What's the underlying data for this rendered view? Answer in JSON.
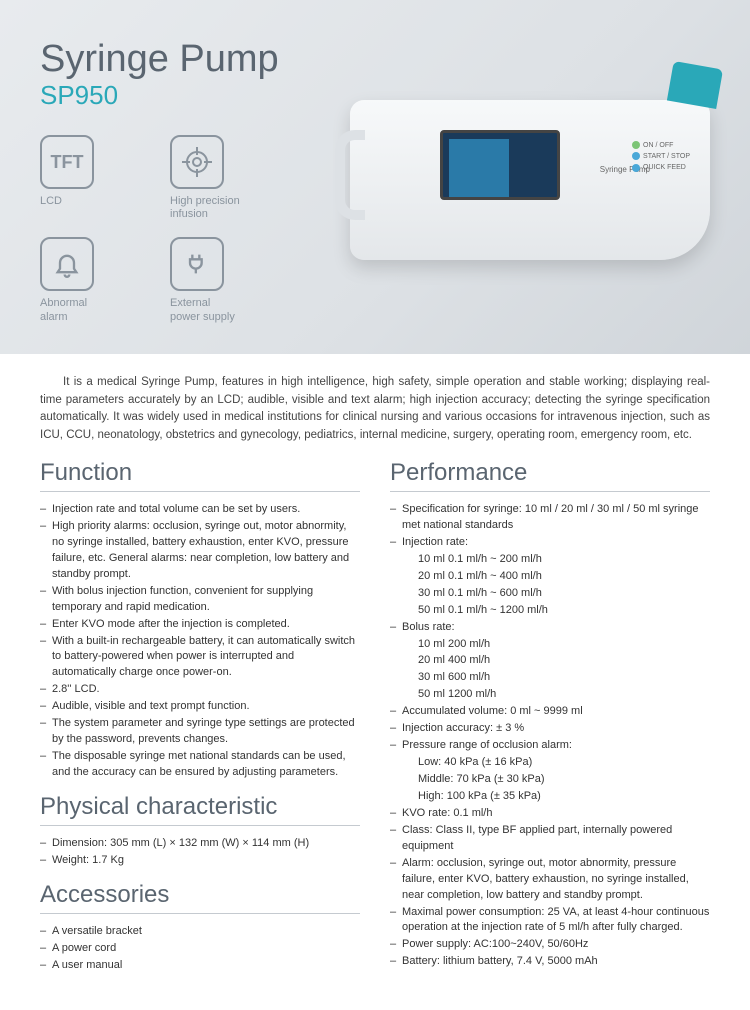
{
  "hero": {
    "title": "Syringe Pump",
    "model": "SP950",
    "features": [
      {
        "icon": "TFT",
        "label": "LCD"
      },
      {
        "icon": "target",
        "label": "High precision\ninfusion"
      },
      {
        "icon": "bell",
        "label": "Abnormal\nalarm"
      },
      {
        "icon": "plug",
        "label": "External\npower supply"
      }
    ],
    "device_label": "Syringe  Pump",
    "device_buttons": [
      "ON / OFF",
      "START / STOP",
      "QUICK FEED"
    ]
  },
  "intro": "It is a medical Syringe Pump, features in high intelligence, high safety, simple operation and stable working; displaying real-time parameters accurately by an LCD; audible, visible and text alarm; high injection accuracy; detecting the syringe specification automatically. It was widely used in medical institutions for clinical nursing and various occasions for intravenous injection, such as ICU, CCU, neonatology, obstetrics and gynecology, pediatrics, internal medicine, surgery, operating room, emergency room, etc.",
  "sections": {
    "function": {
      "title": "Function",
      "items": [
        "Injection rate and total volume can be set by users.",
        "High priority alarms: occlusion, syringe out, motor abnormity, no syringe installed, battery exhaustion, enter KVO, pressure failure, etc. General alarms: near completion, low battery and standby prompt.",
        "With bolus injection function, convenient for supplying temporary and rapid medication.",
        "Enter KVO mode after the injection is completed.",
        "With a built-in rechargeable battery, it can automatically switch to battery-powered when power is interrupted and automatically charge once power-on.",
        "2.8'' LCD.",
        "Audible, visible and text prompt function.",
        "The system parameter and syringe type settings are protected by the password, prevents changes.",
        "The disposable syringe met national standards can be used, and the accuracy can be ensured by adjusting parameters."
      ]
    },
    "physical": {
      "title": "Physical characteristic",
      "items": [
        "Dimension: 305 mm (L) × 132 mm (W) × 114 mm (H)",
        "Weight: 1.7 Kg"
      ]
    },
    "accessories": {
      "title": "Accessories",
      "items": [
        "A versatile bracket",
        "A power cord",
        "A user manual"
      ]
    },
    "performance": {
      "title": "Performance",
      "items": [
        {
          "t": "Specification for syringe: 10 ml / 20 ml / 30 ml / 50 ml syringe met national standards"
        },
        {
          "t": "Injection rate:"
        },
        {
          "t": "10 ml  0.1 ml/h ~ 200 ml/h",
          "sub": true
        },
        {
          "t": "20 ml  0.1 ml/h ~ 400 ml/h",
          "sub": true
        },
        {
          "t": "30 ml  0.1 ml/h ~ 600 ml/h",
          "sub": true
        },
        {
          "t": "50 ml  0.1 ml/h ~ 1200 ml/h",
          "sub": true
        },
        {
          "t": "Bolus rate:"
        },
        {
          "t": "10 ml  200 ml/h",
          "sub": true
        },
        {
          "t": "20 ml  400 ml/h",
          "sub": true
        },
        {
          "t": "30 ml  600 ml/h",
          "sub": true
        },
        {
          "t": "50 ml  1200 ml/h",
          "sub": true
        },
        {
          "t": "Accumulated volume: 0 ml ~ 9999 ml"
        },
        {
          "t": "Injection accuracy: ± 3 %"
        },
        {
          "t": "Pressure range of occlusion alarm:"
        },
        {
          "t": "Low: 40 kPa (± 16 kPa)",
          "sub": true
        },
        {
          "t": "Middle: 70 kPa (± 30 kPa)",
          "sub": true
        },
        {
          "t": "High: 100 kPa (± 35 kPa)",
          "sub": true
        },
        {
          "t": "KVO rate: 0.1 ml/h"
        },
        {
          "t": "Class: Class II, type BF applied part, internally powered equipment"
        },
        {
          "t": "Alarm: occlusion, syringe out, motor abnormity, pressure failure, enter KVO, battery exhaustion, no syringe installed, near completion, low battery and standby prompt."
        },
        {
          "t": "Maximal power consumption: 25 VA, at least 4-hour continuous operation at the injection rate of 5 ml/h after fully charged."
        },
        {
          "t": "Power supply: AC:100~240V, 50/60Hz"
        },
        {
          "t": "Battery: lithium battery, 7.4 V, 5000 mAh"
        }
      ]
    }
  },
  "colors": {
    "accent": "#2aa8b8",
    "heading": "#5a6570",
    "icon_border": "#8a949e"
  }
}
